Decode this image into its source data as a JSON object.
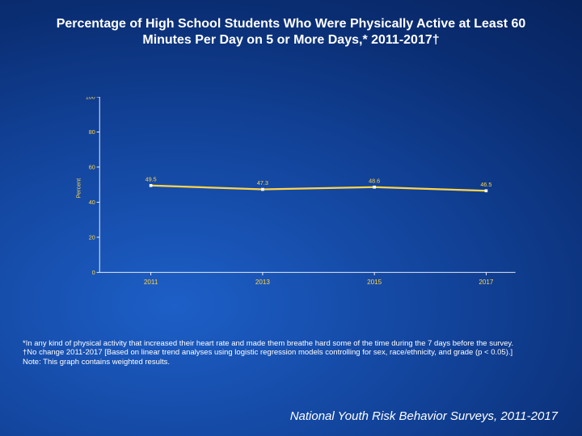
{
  "title": "Percentage of High School Students Who Were Physically Active at Least 60 Minutes Per Day on 5 or More Days,* 2011-2017†",
  "chart": {
    "type": "line",
    "y_axis_title": "Percent",
    "ylim": [
      0,
      100
    ],
    "ytick_step": 20,
    "yticks": [
      0,
      20,
      40,
      60,
      80,
      100
    ],
    "categories": [
      "2011",
      "2013",
      "2015",
      "2017"
    ],
    "values": [
      49.5,
      47.3,
      48.6,
      46.5
    ],
    "line_color": "#ffd54a",
    "marker_color": "#ffffff",
    "marker_size": 4,
    "line_width": 2.5,
    "axis_color": "#ffffff",
    "label_color": "#ffd54a",
    "tick_fontsize": 8,
    "datalabel_fontsize": 8,
    "axis_title_fontsize": 8
  },
  "footnotes": {
    "star": "*In any kind of physical activity that increased their heart rate and made them breathe hard some of the time during the 7 days before the survey.",
    "dagger": "†No change 2011-2017 [Based on linear trend analyses using logistic regression models controlling for sex, race/ethnicity, and grade (p < 0.05).]",
    "note": "Note: This graph contains weighted results."
  },
  "source": "National Youth Risk Behavior Surveys, 2011-2017",
  "colors": {
    "background_outer": "#061f55",
    "background_inner": "#1d5fc7",
    "text_white": "#ffffff",
    "accent_gold": "#ffd54a"
  }
}
